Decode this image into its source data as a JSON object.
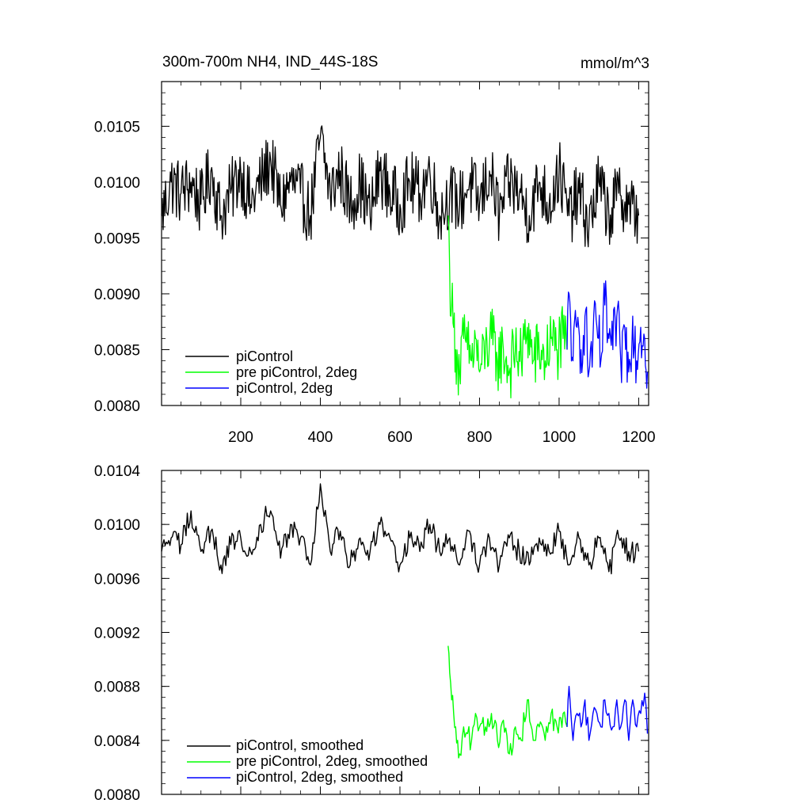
{
  "colors": {
    "picontrol": "#000000",
    "pre_picontrol_2deg": "#00ff00",
    "picontrol_2deg": "#0000ff"
  },
  "chart_data": [
    {
      "type": "line",
      "title": "300m-700m NH4, IND_44S-18S",
      "units": "mmol/m^3",
      "xlim": [
        1,
        1225
      ],
      "ylim": [
        0.008,
        0.0109
      ],
      "xticks": [
        200,
        400,
        600,
        800,
        1000,
        1200
      ],
      "xtick_labels": [
        "200",
        "400",
        "600",
        "800",
        "1000",
        "1200"
      ],
      "yticks": [
        0.008,
        0.0085,
        0.009,
        0.0095,
        0.01,
        0.0105
      ],
      "ytick_labels": [
        "0.0080",
        "0.0085",
        "0.0090",
        "0.0095",
        "0.0100",
        "0.0105"
      ],
      "legend_position": "bottom-left",
      "series": [
        {
          "name": "piControl",
          "color": "#000000",
          "x": [
            1,
            25,
            50,
            75,
            100,
            125,
            150,
            175,
            200,
            225,
            250,
            275,
            300,
            325,
            350,
            375,
            400,
            425,
            450,
            475,
            500,
            525,
            550,
            575,
            600,
            625,
            650,
            675,
            700,
            725,
            750,
            775,
            800,
            825,
            850,
            875,
            900,
            925,
            950,
            975,
            1000,
            1025,
            1050,
            1075,
            1100,
            1125,
            1150,
            1175,
            1200
          ],
          "y": [
            0.0097,
            0.01,
            0.0099,
            0.01,
            0.0098,
            0.0101,
            0.0097,
            0.0099,
            0.0101,
            0.0098,
            0.01,
            0.0102,
            0.0098,
            0.01,
            0.0099,
            0.0097,
            0.0104,
            0.0099,
            0.0101,
            0.0098,
            0.01,
            0.0097,
            0.0101,
            0.0099,
            0.0098,
            0.01,
            0.0099,
            0.0101,
            0.0097,
            0.0099,
            0.0098,
            0.01,
            0.0098,
            0.0101,
            0.0097,
            0.01,
            0.0099,
            0.0097,
            0.01,
            0.0098,
            0.0101,
            0.0097,
            0.0099,
            0.0096,
            0.01,
            0.0097,
            0.0099,
            0.0098,
            0.0097
          ]
        },
        {
          "name": "pre piControl, 2deg",
          "color": "#00ff00",
          "x": [
            721,
            725,
            730,
            735,
            740,
            745,
            750,
            760,
            770,
            780,
            790,
            800,
            815,
            830,
            845,
            860,
            875,
            890,
            905,
            920,
            935,
            950,
            965,
            980,
            995,
            1010,
            1020
          ],
          "y": [
            0.0097,
            0.0092,
            0.0089,
            0.0087,
            0.0085,
            0.0084,
            0.0083,
            0.0086,
            0.0085,
            0.0084,
            0.0086,
            0.0083,
            0.0085,
            0.0086,
            0.0084,
            0.0085,
            0.0083,
            0.0085,
            0.0084,
            0.0087,
            0.0084,
            0.0085,
            0.0084,
            0.0086,
            0.0085,
            0.0086,
            0.0085
          ]
        },
        {
          "name": "piControl, 2deg",
          "color": "#0000ff",
          "x": [
            1020,
            1025,
            1035,
            1045,
            1055,
            1065,
            1075,
            1085,
            1095,
            1105,
            1115,
            1125,
            1135,
            1145,
            1155,
            1165,
            1175,
            1185,
            1195,
            1205,
            1215,
            1222
          ],
          "y": [
            0.0085,
            0.009,
            0.0084,
            0.0087,
            0.0085,
            0.0088,
            0.0083,
            0.0086,
            0.0087,
            0.0084,
            0.0089,
            0.0086,
            0.0085,
            0.0088,
            0.0084,
            0.0087,
            0.0083,
            0.0088,
            0.0084,
            0.0087,
            0.0086,
            0.0083
          ]
        }
      ]
    },
    {
      "type": "line",
      "xlim": [
        1,
        1225
      ],
      "ylim": [
        0.008,
        0.0104
      ],
      "xticks": [
        200,
        400,
        600,
        800,
        1000,
        1200
      ],
      "yticks": [
        0.008,
        0.0084,
        0.0088,
        0.0092,
        0.0096,
        0.01,
        0.0104
      ],
      "ytick_labels": [
        "0.0080",
        "0.0084",
        "0.0088",
        "0.0092",
        "0.0096",
        "0.0100",
        "0.0104"
      ],
      "legend_position": "bottom-left",
      "series": [
        {
          "name": "piControl, smoothed",
          "color": "#000000",
          "x": [
            1,
            25,
            50,
            75,
            100,
            125,
            150,
            175,
            200,
            225,
            250,
            275,
            300,
            325,
            350,
            375,
            400,
            425,
            450,
            475,
            500,
            525,
            550,
            575,
            600,
            625,
            650,
            675,
            700,
            725,
            750,
            775,
            800,
            825,
            850,
            875,
            900,
            925,
            950,
            975,
            1000,
            1025,
            1050,
            1075,
            1100,
            1125,
            1150,
            1175,
            1200
          ],
          "y": [
            0.0098,
            0.0099,
            0.00985,
            0.0101,
            0.0098,
            0.00995,
            0.0097,
            0.00985,
            0.0099,
            0.0098,
            0.01,
            0.0101,
            0.00975,
            0.01,
            0.0099,
            0.0097,
            0.0103,
            0.0098,
            0.00995,
            0.0097,
            0.0099,
            0.0098,
            0.01,
            0.0099,
            0.0097,
            0.0099,
            0.0098,
            0.01,
            0.0098,
            0.0099,
            0.0097,
            0.00995,
            0.0097,
            0.0099,
            0.0097,
            0.0099,
            0.0098,
            0.0097,
            0.0099,
            0.0098,
            0.00995,
            0.0097,
            0.0099,
            0.0097,
            0.0099,
            0.00965,
            0.0099,
            0.0098,
            0.0098
          ]
        },
        {
          "name": "pre piControl, 2deg, smoothed",
          "color": "#00ff00",
          "x": [
            721,
            725,
            730,
            735,
            740,
            745,
            750,
            760,
            770,
            780,
            790,
            800,
            815,
            830,
            845,
            860,
            875,
            890,
            905,
            920,
            935,
            950,
            965,
            980,
            995,
            1010,
            1020
          ],
          "y": [
            0.0091,
            0.0089,
            0.0087,
            0.0086,
            0.0085,
            0.0084,
            0.0083,
            0.0085,
            0.00845,
            0.0084,
            0.0086,
            0.0085,
            0.0085,
            0.0086,
            0.0084,
            0.00855,
            0.0083,
            0.0085,
            0.0084,
            0.0087,
            0.0084,
            0.0085,
            0.0084,
            0.0086,
            0.0085,
            0.0086,
            0.0085
          ]
        },
        {
          "name": "piControl, 2deg, smoothed",
          "color": "#0000ff",
          "x": [
            1020,
            1025,
            1035,
            1045,
            1055,
            1065,
            1075,
            1085,
            1095,
            1105,
            1115,
            1125,
            1135,
            1145,
            1155,
            1165,
            1175,
            1185,
            1195,
            1205,
            1215,
            1222
          ],
          "y": [
            0.0085,
            0.0088,
            0.0084,
            0.0086,
            0.0085,
            0.0087,
            0.0084,
            0.0086,
            0.0086,
            0.0085,
            0.0087,
            0.0086,
            0.0085,
            0.0087,
            0.0085,
            0.0087,
            0.0084,
            0.0087,
            0.0085,
            0.0086,
            0.00875,
            0.00845
          ]
        }
      ]
    }
  ]
}
